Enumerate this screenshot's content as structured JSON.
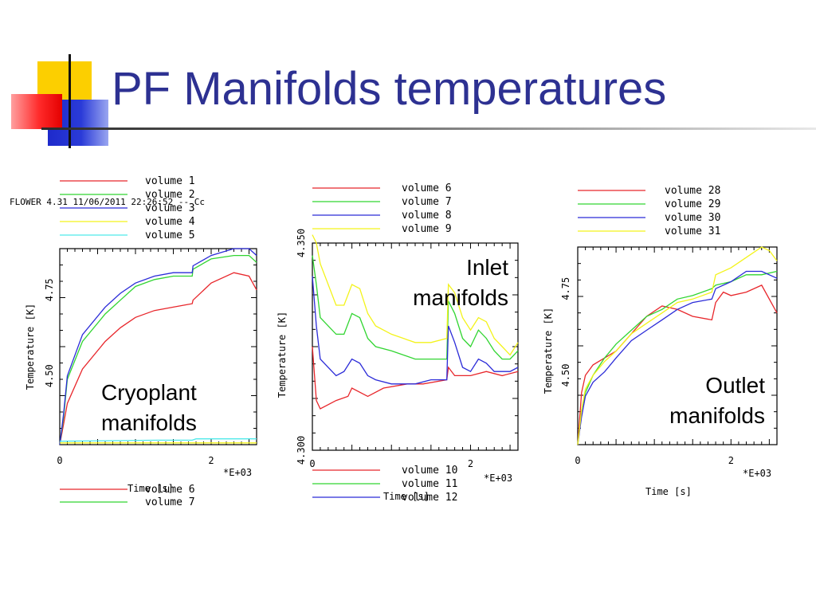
{
  "slide": {
    "title": "PF Manifolds temperatures",
    "header_text": "FLOWER 4.31 11/06/2011  22:26:52      -- Cc"
  },
  "colors": {
    "title": "#2d3192",
    "red": "#e8262b",
    "green": "#31d531",
    "blue": "#2b2bd8",
    "yellow": "#f3f31a",
    "cyan": "#4fe9ea"
  },
  "labels": {
    "cryoplant": [
      "Cryoplant",
      "manifolds"
    ],
    "inlet": [
      "Inlet",
      "manifolds"
    ],
    "outlet": [
      "Outlet",
      "manifolds"
    ]
  },
  "chart_data": [
    {
      "type": "line",
      "ylabel": "Temperature [K]",
      "xlabel": "Time [s]",
      "x_multiplier": "*E+03",
      "xlim": [
        0,
        2.6
      ],
      "ylim": [
        4.3,
        4.87
      ],
      "x_ticks": [
        "0",
        "2"
      ],
      "y_ticks": [
        "4.50",
        "4.75"
      ],
      "legend_top": [
        "volume 1",
        "volume 2",
        "volume 3",
        "volume 4",
        "volume 5"
      ],
      "legend_bottom": [
        "volume 6",
        "volume 7"
      ],
      "series": [
        {
          "name": "volume 1",
          "color": "red",
          "x": [
            0,
            0.05,
            0.1,
            0.3,
            0.6,
            0.8,
            1.0,
            1.25,
            1.5,
            1.75,
            1.76,
            2.0,
            2.3,
            2.5,
            2.6
          ],
          "y": [
            4.3,
            4.36,
            4.42,
            4.52,
            4.6,
            4.64,
            4.67,
            4.69,
            4.7,
            4.71,
            4.72,
            4.77,
            4.8,
            4.79,
            4.75
          ]
        },
        {
          "name": "volume 2",
          "color": "green",
          "x": [
            0,
            0.05,
            0.1,
            0.3,
            0.6,
            0.8,
            1.0,
            1.25,
            1.5,
            1.75,
            1.76,
            2.0,
            2.3,
            2.5,
            2.6
          ],
          "y": [
            4.3,
            4.38,
            4.49,
            4.6,
            4.68,
            4.72,
            4.76,
            4.78,
            4.79,
            4.79,
            4.81,
            4.84,
            4.85,
            4.85,
            4.83
          ]
        },
        {
          "name": "volume 3",
          "color": "blue",
          "x": [
            0,
            0.05,
            0.1,
            0.3,
            0.6,
            0.8,
            1.0,
            1.25,
            1.5,
            1.75,
            1.76,
            2.0,
            2.3,
            2.5,
            2.6
          ],
          "y": [
            4.3,
            4.39,
            4.5,
            4.62,
            4.7,
            4.74,
            4.77,
            4.79,
            4.8,
            4.8,
            4.82,
            4.85,
            4.87,
            4.87,
            4.85
          ]
        },
        {
          "name": "volume 4",
          "color": "yellow",
          "x": [
            0,
            2.6
          ],
          "y": [
            4.305,
            4.305
          ]
        },
        {
          "name": "volume 5",
          "color": "cyan",
          "x": [
            0,
            1.3,
            1.75,
            1.8,
            2.6
          ],
          "y": [
            4.31,
            4.313,
            4.313,
            4.317,
            4.317
          ]
        }
      ]
    },
    {
      "type": "line",
      "ylabel": "Temperature [K]",
      "xlabel": "Time [s]",
      "x_multiplier": "*E+03",
      "xlim": [
        0,
        2.6
      ],
      "ylim": [
        4.3,
        4.35
      ],
      "x_ticks": [
        "0",
        "2"
      ],
      "y_ticks": [
        "4.300",
        "4.350"
      ],
      "legend_top": [
        "volume 6",
        "volume 7",
        "volume 8",
        "volume 9"
      ],
      "legend_bottom": [
        "volume 10",
        "volume 11",
        "volume 12"
      ],
      "series": [
        {
          "name": "volume 6",
          "color": "red",
          "x": [
            0,
            0.05,
            0.1,
            0.3,
            0.45,
            0.5,
            0.7,
            0.9,
            1.2,
            1.4,
            1.7,
            1.72,
            1.8,
            2.0,
            2.2,
            2.4,
            2.6
          ],
          "y": [
            4.325,
            4.312,
            4.31,
            4.312,
            4.313,
            4.315,
            4.313,
            4.315,
            4.316,
            4.316,
            4.317,
            4.32,
            4.318,
            4.318,
            4.319,
            4.318,
            4.319
          ]
        },
        {
          "name": "volume 7",
          "color": "green",
          "x": [
            0,
            0.05,
            0.1,
            0.3,
            0.4,
            0.5,
            0.6,
            0.7,
            0.8,
            1.0,
            1.3,
            1.5,
            1.7,
            1.72,
            1.8,
            1.9,
            2.0,
            2.1,
            2.2,
            2.3,
            2.4,
            2.5,
            2.6
          ],
          "y": [
            4.347,
            4.34,
            4.332,
            4.328,
            4.328,
            4.333,
            4.332,
            4.327,
            4.325,
            4.324,
            4.322,
            4.322,
            4.322,
            4.336,
            4.333,
            4.327,
            4.325,
            4.329,
            4.327,
            4.324,
            4.322,
            4.322,
            4.324
          ]
        },
        {
          "name": "volume 8",
          "color": "blue",
          "x": [
            0,
            0.05,
            0.1,
            0.3,
            0.4,
            0.5,
            0.6,
            0.7,
            0.8,
            1.0,
            1.3,
            1.5,
            1.7,
            1.72,
            1.8,
            1.9,
            2.0,
            2.1,
            2.2,
            2.3,
            2.4,
            2.5,
            2.6
          ],
          "y": [
            4.342,
            4.33,
            4.322,
            4.318,
            4.319,
            4.322,
            4.321,
            4.318,
            4.317,
            4.316,
            4.316,
            4.317,
            4.317,
            4.33,
            4.326,
            4.32,
            4.319,
            4.322,
            4.321,
            4.319,
            4.319,
            4.319,
            4.32
          ]
        },
        {
          "name": "volume 9",
          "color": "yellow",
          "x": [
            0,
            0.05,
            0.1,
            0.3,
            0.4,
            0.5,
            0.6,
            0.7,
            0.8,
            1.0,
            1.3,
            1.5,
            1.7,
            1.72,
            1.8,
            1.9,
            2.0,
            2.1,
            2.2,
            2.3,
            2.4,
            2.5,
            2.6
          ],
          "y": [
            4.352,
            4.35,
            4.345,
            4.335,
            4.335,
            4.34,
            4.339,
            4.333,
            4.33,
            4.328,
            4.326,
            4.326,
            4.327,
            4.34,
            4.338,
            4.332,
            4.329,
            4.332,
            4.331,
            4.327,
            4.325,
            4.323,
            4.326
          ]
        }
      ]
    },
    {
      "type": "line",
      "ylabel": "Temperature [K]",
      "xlabel": "Time [s]",
      "x_multiplier": "*E+03",
      "xlim": [
        0,
        2.6
      ],
      "ylim": [
        4.3,
        4.87
      ],
      "x_ticks": [
        "0",
        "2"
      ],
      "y_ticks": [
        "4.50",
        "4.75"
      ],
      "legend_top": [
        "volume 28",
        "volume 29",
        "volume 30",
        "volume 31"
      ],
      "legend_bottom": [],
      "series": [
        {
          "name": "volume 28",
          "color": "red",
          "x": [
            0,
            0.05,
            0.1,
            0.2,
            0.35,
            0.5,
            0.7,
            0.9,
            1.1,
            1.3,
            1.5,
            1.75,
            1.8,
            1.9,
            2.0,
            2.2,
            2.4,
            2.6
          ],
          "y": [
            4.3,
            4.45,
            4.5,
            4.53,
            4.55,
            4.57,
            4.62,
            4.67,
            4.7,
            4.69,
            4.67,
            4.66,
            4.71,
            4.74,
            4.73,
            4.74,
            4.76,
            4.68
          ]
        },
        {
          "name": "volume 29",
          "color": "green",
          "x": [
            0,
            0.05,
            0.1,
            0.2,
            0.35,
            0.5,
            0.7,
            0.9,
            1.1,
            1.3,
            1.5,
            1.75,
            1.8,
            2.0,
            2.2,
            2.4,
            2.6
          ],
          "y": [
            4.3,
            4.4,
            4.45,
            4.5,
            4.55,
            4.59,
            4.63,
            4.67,
            4.69,
            4.72,
            4.73,
            4.75,
            4.76,
            4.77,
            4.79,
            4.79,
            4.8
          ]
        },
        {
          "name": "volume 30",
          "color": "blue",
          "x": [
            0,
            0.05,
            0.1,
            0.2,
            0.35,
            0.5,
            0.7,
            0.9,
            1.1,
            1.3,
            1.5,
            1.75,
            1.8,
            2.0,
            2.2,
            2.4,
            2.6
          ],
          "y": [
            4.3,
            4.38,
            4.44,
            4.48,
            4.51,
            4.55,
            4.6,
            4.63,
            4.66,
            4.69,
            4.71,
            4.72,
            4.75,
            4.77,
            4.8,
            4.8,
            4.78
          ]
        },
        {
          "name": "volume 31",
          "color": "yellow",
          "x": [
            0,
            0.05,
            0.1,
            0.2,
            0.35,
            0.5,
            0.7,
            0.9,
            1.1,
            1.3,
            1.5,
            1.75,
            1.8,
            2.0,
            2.2,
            2.4,
            2.5,
            2.6
          ],
          "y": [
            4.3,
            4.4,
            4.46,
            4.5,
            4.54,
            4.57,
            4.62,
            4.65,
            4.68,
            4.71,
            4.72,
            4.74,
            4.79,
            4.81,
            4.84,
            4.87,
            4.86,
            4.83
          ]
        }
      ]
    }
  ]
}
